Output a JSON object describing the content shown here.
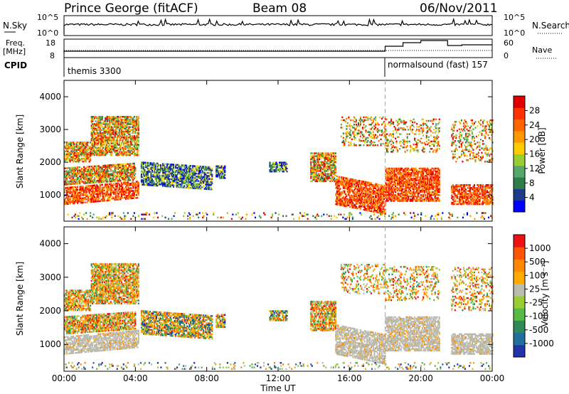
{
  "header": {
    "site": "Prince George (fitACF)",
    "beam": "Beam 08",
    "date": "06/Nov/2011"
  },
  "top_panels": {
    "nsky_label": "N.Sky",
    "nsky_ticks_left": [
      "10^5",
      "10^0"
    ],
    "nsky_ticks_right": [
      "10^5",
      "10^0"
    ],
    "nsearch_label": "N.Search",
    "freq_label_1": "Freq.",
    "freq_label_2": "[MHz]",
    "freq_ticks_left": [
      "18",
      "8"
    ],
    "nave_ticks_right": [
      "60",
      "0"
    ],
    "nave_label": "Nave",
    "cpid_label": "CPID",
    "cpid_mode_1": "themis 3300",
    "cpid_mode_2": "normalsound (fast) 157"
  },
  "chart_data": [
    {
      "type": "heatmap",
      "name": "Power",
      "ylabel": "Slant Range [km]",
      "ylim": [
        200,
        4500
      ],
      "yticks": [
        "1000",
        "2000",
        "3000",
        "4000"
      ],
      "xlim": [
        "00:00",
        "24:00"
      ],
      "colorbar": {
        "label": "Power [dB]",
        "ticks": [
          "28",
          "24",
          "20",
          "16",
          "12",
          "8",
          "4"
        ],
        "colors": [
          "#0000ff",
          "#1e3a8a",
          "#2e7d4a",
          "#55a868",
          "#9acd32",
          "#ffcc00",
          "#ff9900",
          "#ff6600",
          "#ff3300",
          "#e00000"
        ]
      }
    },
    {
      "type": "heatmap",
      "name": "Velocity",
      "ylabel": "Slant Range [km]",
      "ylim": [
        200,
        4500
      ],
      "yticks": [
        "1000",
        "2000",
        "3000",
        "4000"
      ],
      "xlim": [
        "00:00",
        "24:00"
      ],
      "xticks": [
        "00:00",
        "04:00",
        "08:00",
        "12:00",
        "16:00",
        "20:00",
        "00:00"
      ],
      "xlabel": "Time UT",
      "colorbar": {
        "label": "Velocity [m s⁻¹]",
        "ticks": [
          "1000",
          "500",
          "100",
          "25",
          "-25",
          "-100",
          "-500",
          "-1000"
        ],
        "colors": [
          "#2233aa",
          "#226e9e",
          "#2e8b57",
          "#55bb44",
          "#9acd32",
          "#bbbbb0",
          "#ffaa00",
          "#ff8800",
          "#ff5500",
          "#ee1111"
        ]
      }
    }
  ]
}
